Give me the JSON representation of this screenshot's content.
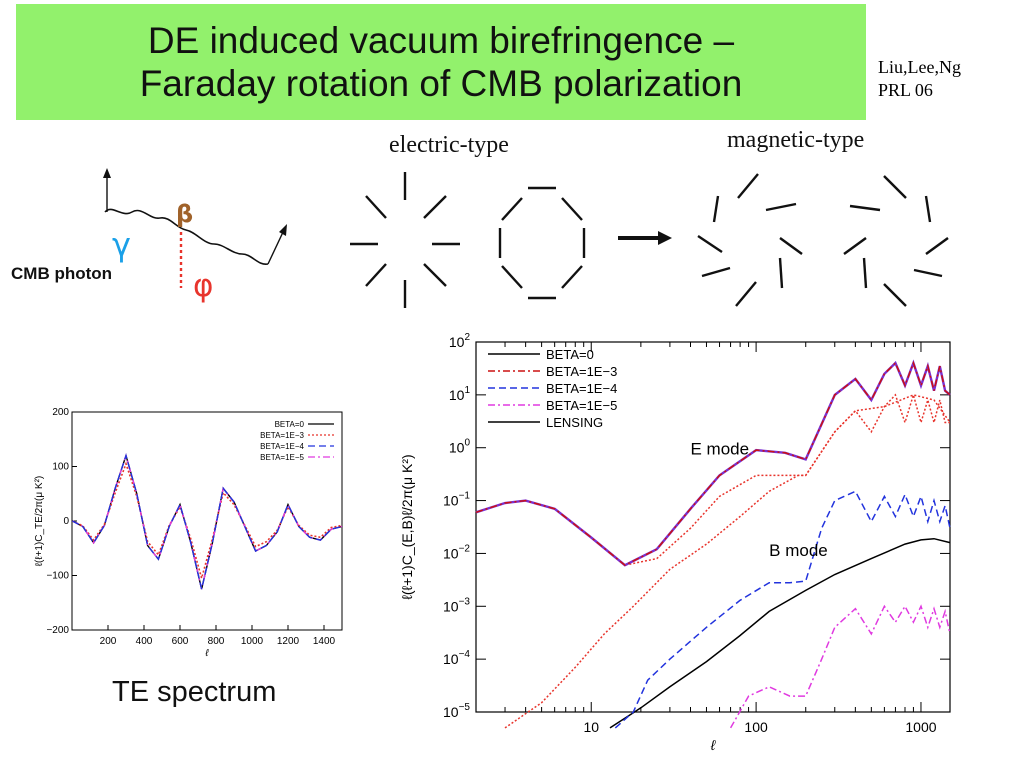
{
  "title": {
    "line1": "DE induced vacuum birefringence –",
    "line2": "Faraday rotation of CMB polarization"
  },
  "citation": {
    "authors": "Liu,Lee,Ng",
    "journal": "PRL 06"
  },
  "diagram": {
    "electric_label": "electric-type",
    "magnetic_label": "magnetic-type",
    "photon_label": "CMB photon",
    "gamma_symbol": "γ",
    "beta_symbol": "β",
    "phi_symbol": "φ",
    "colors": {
      "gamma": "#1aa0e8",
      "beta": "#a0622a",
      "phi": "#e8342c"
    }
  },
  "te_caption": "TE spectrum",
  "chart_data": [
    {
      "type": "line",
      "xlabel": "ℓ",
      "ylabel": "ℓ(ℓ+1)C_TE/2π(μ K²)",
      "xlim": [
        0,
        1500
      ],
      "ylim": [
        -200,
        200
      ],
      "xticks": [
        "200",
        "400",
        "600",
        "800",
        "1000",
        "1200",
        "1400"
      ],
      "yticks": [
        "200",
        "100",
        "0",
        "−100",
        "−200"
      ],
      "legend_position": "top-right",
      "legend": [
        "BETA=0",
        "BETA=1E−3",
        "BETA=1E−4",
        "BETA=1E−5"
      ],
      "series": [
        {
          "name": "BETA=0",
          "color": "#000000",
          "style": "solid",
          "x": [
            2,
            60,
            120,
            180,
            240,
            300,
            360,
            420,
            480,
            540,
            600,
            660,
            720,
            780,
            840,
            900,
            960,
            1020,
            1080,
            1140,
            1200,
            1260,
            1320,
            1380,
            1440,
            1500
          ],
          "y": [
            0,
            -10,
            -40,
            -8,
            60,
            120,
            50,
            -45,
            -70,
            -10,
            30,
            -40,
            -125,
            -40,
            60,
            35,
            -10,
            -55,
            -45,
            -20,
            30,
            -10,
            -30,
            -35,
            -15,
            -10
          ]
        },
        {
          "name": "BETA=1E−3",
          "color": "#e8342c",
          "style": "dotted",
          "x": [
            2,
            60,
            120,
            180,
            240,
            300,
            360,
            420,
            480,
            540,
            600,
            660,
            720,
            780,
            840,
            900,
            960,
            1020,
            1080,
            1140,
            1200,
            1260,
            1320,
            1380,
            1440,
            1500
          ],
          "y": [
            0,
            -9,
            -35,
            -6,
            52,
            105,
            45,
            -38,
            -62,
            -8,
            26,
            -33,
            -105,
            -33,
            52,
            30,
            -8,
            -47,
            -38,
            -17,
            26,
            -8,
            -26,
            -30,
            -12,
            -8
          ]
        },
        {
          "name": "BETA=1E−4",
          "color": "#2233dd",
          "style": "dashed",
          "x": [
            2,
            60,
            120,
            180,
            240,
            300,
            360,
            420,
            480,
            540,
            600,
            660,
            720,
            780,
            840,
            900,
            960,
            1020,
            1080,
            1140,
            1200,
            1260,
            1320,
            1380,
            1440,
            1500
          ],
          "y": [
            0,
            -10,
            -40,
            -8,
            60,
            120,
            50,
            -45,
            -70,
            -10,
            30,
            -40,
            -125,
            -40,
            60,
            35,
            -10,
            -55,
            -45,
            -20,
            30,
            -10,
            -30,
            -35,
            -15,
            -10
          ]
        },
        {
          "name": "BETA=1E−5",
          "color": "#e03ae0",
          "style": "dashdot",
          "x": [
            2,
            60,
            120,
            180,
            240,
            300,
            360,
            420,
            480,
            540,
            600,
            660,
            720,
            780,
            840,
            900,
            960,
            1020,
            1080,
            1140,
            1200,
            1260,
            1320,
            1380,
            1440,
            1500
          ],
          "y": [
            0,
            -10,
            -40,
            -8,
            60,
            120,
            50,
            -45,
            -70,
            -10,
            30,
            -40,
            -125,
            -40,
            60,
            35,
            -10,
            -55,
            -45,
            -20,
            30,
            -10,
            -30,
            -35,
            -15,
            -10
          ]
        }
      ]
    },
    {
      "type": "line",
      "xscale": "log",
      "yscale": "log",
      "xlabel": "ℓ",
      "ylabel": "ℓ(ℓ+1)C_(E,B)ℓ/2π(μ K²)",
      "xlim": [
        2,
        1500
      ],
      "ylim": [
        1e-05,
        100
      ],
      "xticks": [
        "10",
        "100",
        "1000"
      ],
      "yticks": [
        {
          "base": "10",
          "exp": "2"
        },
        {
          "base": "10",
          "exp": "1"
        },
        {
          "base": "10",
          "exp": "0"
        },
        {
          "base": "10",
          "exp": "−1"
        },
        {
          "base": "10",
          "exp": "−2"
        },
        {
          "base": "10",
          "exp": "−3"
        },
        {
          "base": "10",
          "exp": "−4"
        },
        {
          "base": "10",
          "exp": "−5"
        }
      ],
      "legend_position": "top-left",
      "legend": [
        "BETA=0",
        "BETA=1E−3",
        "BETA=1E−4",
        "BETA=1E−5",
        "LENSING"
      ],
      "annotations": [
        {
          "text": "E mode",
          "x": 40,
          "y": 0.75
        },
        {
          "text": "B mode",
          "x": 120,
          "y": 0.009
        }
      ],
      "series": [
        {
          "name": "E mode (BETA=0,1E−4,1E−5)",
          "color": "#7a2fd0",
          "style": "solid",
          "x": [
            2,
            3,
            4,
            6,
            10,
            16,
            25,
            40,
            60,
            100,
            150,
            200,
            300,
            400,
            500,
            600,
            700,
            800,
            900,
            1000,
            1100,
            1200,
            1300,
            1400,
            1500
          ],
          "y": [
            0.06,
            0.09,
            0.1,
            0.07,
            0.02,
            0.006,
            0.012,
            0.07,
            0.3,
            0.9,
            0.8,
            0.6,
            10,
            20,
            8,
            25,
            40,
            15,
            40,
            15,
            35,
            12,
            35,
            12,
            10
          ]
        },
        {
          "name": "BETA=1E−3",
          "color": "#cc1111",
          "style": "dashdot",
          "x": [
            2,
            3,
            4,
            6,
            10,
            16,
            25,
            40,
            60,
            100,
            150,
            200,
            300,
            400,
            500,
            600,
            700,
            800,
            900,
            1000,
            1100,
            1200,
            1300,
            1400,
            1500
          ],
          "y": [
            0.06,
            0.09,
            0.1,
            0.07,
            0.02,
            0.006,
            0.012,
            0.07,
            0.3,
            0.9,
            0.8,
            0.6,
            10,
            20,
            8,
            25,
            40,
            15,
            40,
            15,
            35,
            12,
            35,
            12,
            10
          ]
        },
        {
          "name": "BETA=1E−3 (E reduced)",
          "color": "#e8342c",
          "style": "dotted",
          "x": [
            2,
            3,
            4,
            6,
            10,
            16,
            25,
            40,
            60,
            100,
            150,
            200,
            300,
            400,
            500,
            600,
            700,
            800,
            900,
            1000,
            1100,
            1200,
            1300,
            1400,
            1500
          ],
          "y": [
            0.06,
            0.09,
            0.1,
            0.07,
            0.02,
            0.006,
            0.008,
            0.03,
            0.12,
            0.3,
            0.3,
            0.3,
            2,
            5,
            2,
            6,
            10,
            3,
            10,
            3,
            8,
            3,
            8,
            3,
            3
          ]
        },
        {
          "name": "BETA=1E−3 (B)",
          "color": "#e8342c",
          "style": "dotted",
          "x": [
            3,
            5,
            8,
            12,
            18,
            30,
            50,
            80,
            120,
            180,
            200,
            300,
            400,
            600,
            900,
            1200,
            1500
          ],
          "y": [
            5e-06,
            1.5e-05,
            7e-05,
            0.0003,
            0.001,
            0.005,
            0.015,
            0.05,
            0.15,
            0.3,
            0.3,
            2,
            5,
            6,
            10,
            8,
            3
          ]
        },
        {
          "name": "BETA=1E−4",
          "color": "#2233dd",
          "style": "dashed",
          "x": [
            14,
            18,
            22,
            30,
            50,
            80,
            120,
            160,
            200,
            250,
            300,
            400,
            500,
            600,
            700,
            800,
            900,
            1000,
            1100,
            1200,
            1300,
            1400,
            1500
          ],
          "y": [
            5e-06,
            1e-05,
            4e-05,
            0.0001,
            0.0004,
            0.0013,
            0.0028,
            0.0028,
            0.003,
            0.03,
            0.1,
            0.15,
            0.04,
            0.12,
            0.05,
            0.13,
            0.05,
            0.12,
            0.04,
            0.1,
            0.04,
            0.08,
            0.03
          ]
        },
        {
          "name": "BETA=1E−5",
          "color": "#e03ae0",
          "style": "dashdot",
          "x": [
            70,
            90,
            120,
            160,
            200,
            250,
            300,
            400,
            500,
            600,
            700,
            800,
            900,
            1000,
            1100,
            1200,
            1300,
            1400,
            1500
          ],
          "y": [
            5e-06,
            2e-05,
            3e-05,
            2e-05,
            2e-05,
            0.0001,
            0.0004,
            0.0009,
            0.0003,
            0.001,
            0.0005,
            0.001,
            0.0005,
            0.001,
            0.0004,
            0.0009,
            0.0004,
            0.0008,
            0.0003
          ]
        },
        {
          "name": "LENSING",
          "color": "#000000",
          "style": "solid",
          "x": [
            13,
            20,
            30,
            50,
            80,
            120,
            200,
            300,
            500,
            800,
            1000,
            1200,
            1500
          ],
          "y": [
            5e-06,
            1.2e-05,
            3e-05,
            9e-05,
            0.00028,
            0.0008,
            0.002,
            0.004,
            0.008,
            0.015,
            0.018,
            0.019,
            0.016
          ]
        }
      ]
    }
  ]
}
